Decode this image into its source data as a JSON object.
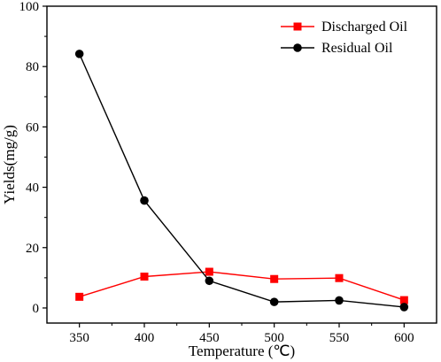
{
  "chart_data": {
    "type": "line",
    "x": [
      350,
      400,
      450,
      500,
      550,
      600
    ],
    "series": [
      {
        "name": "Discharged Oil",
        "values": [
          3.7,
          10.4,
          12.0,
          9.6,
          9.9,
          2.6
        ],
        "color": "#ff0000",
        "marker": "square"
      },
      {
        "name": "Residual Oil",
        "values": [
          84.2,
          35.6,
          9.0,
          2.0,
          2.5,
          0.3
        ],
        "color": "#000000",
        "marker": "circle"
      }
    ],
    "xlabel": "Temperature (℃)",
    "ylabel": "Yields(mg/g)",
    "xlim": [
      325,
      625
    ],
    "ylim": [
      -5,
      100
    ],
    "xticks": [
      "350",
      "400",
      "450",
      "500",
      "550",
      "600"
    ],
    "yticks": [
      "0",
      "20",
      "40",
      "60",
      "80",
      "100"
    ],
    "legend_position": "top-right",
    "grid": false
  }
}
